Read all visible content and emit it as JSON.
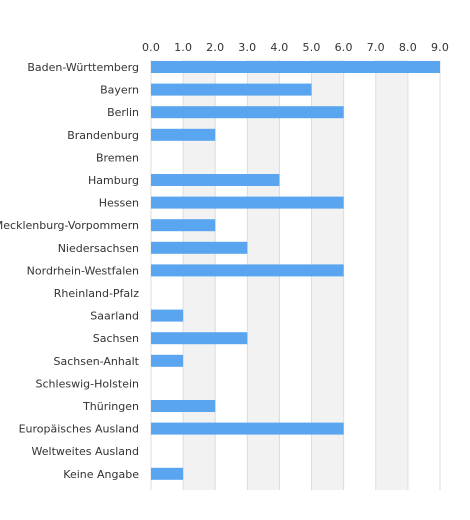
{
  "chart_data": {
    "type": "bar",
    "orientation": "horizontal",
    "categories": [
      "Baden-Württemberg",
      "Bayern",
      "Berlin",
      "Brandenburg",
      "Bremen",
      "Hamburg",
      "Hessen",
      "Mecklenburg-Vorpommern",
      "Niedersachsen",
      "Nordrhein-Westfalen",
      "Rheinland-Pfalz",
      "Saarland",
      "Sachsen",
      "Sachsen-Anhalt",
      "Schleswig-Holstein",
      "Thüringen",
      "Europäisches Ausland",
      "Weltweites Ausland",
      "Keine Angabe"
    ],
    "values": [
      9,
      5,
      6,
      2,
      0,
      4,
      6,
      2,
      3,
      6,
      0,
      1,
      3,
      1,
      0,
      2,
      6,
      0,
      1
    ],
    "xlim": [
      0,
      9
    ],
    "x_ticks": [
      "0.0",
      "1.0",
      "2.0",
      "3.0",
      "4.0",
      "5.0",
      "6.0",
      "7.0",
      "8.0",
      "9.0"
    ],
    "x_axis_position": "top",
    "grid": true,
    "alternating_band_color": "#f2f2f2",
    "grid_color": "#dddddd",
    "bar_color": "#5aa5f0",
    "title": "",
    "xlabel": "",
    "ylabel": ""
  }
}
